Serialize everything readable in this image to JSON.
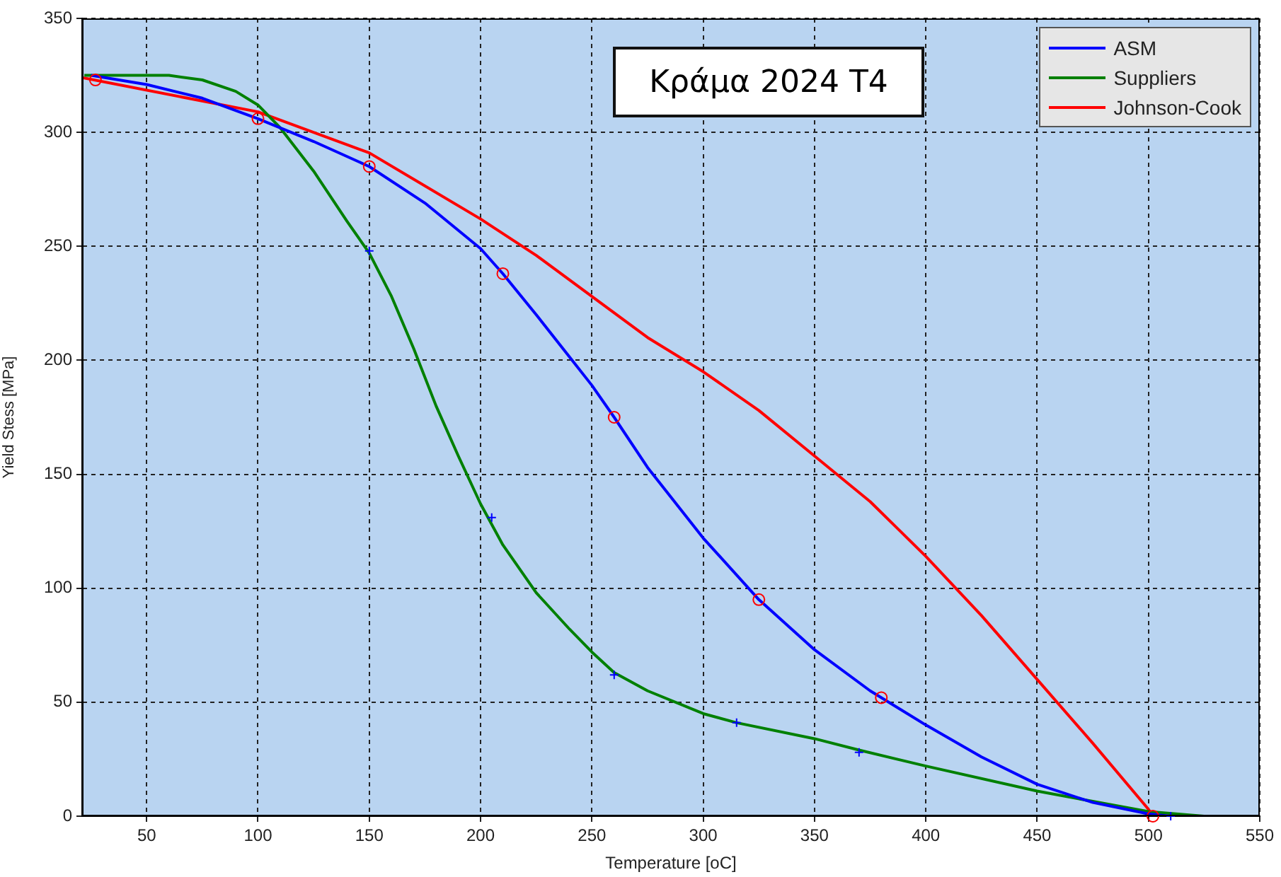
{
  "chart_data": {
    "type": "line",
    "xlabel": "Temperature [oC]",
    "ylabel": "Yield Stess [MPa]",
    "annotations": [
      "Κράμα 2024 T4"
    ],
    "xlim": [
      21,
      550
    ],
    "ylim": [
      0,
      350
    ],
    "xticks": [
      50,
      100,
      150,
      200,
      250,
      300,
      350,
      400,
      450,
      500,
      550
    ],
    "yticks": [
      0,
      50,
      100,
      150,
      200,
      250,
      300,
      350
    ],
    "grid": true,
    "legend": "top right",
    "marker": "none",
    "line_style": "solid",
    "series": [
      {
        "name": "ASM",
        "color": "#0000ff",
        "x": [
          25,
          50,
          75,
          100,
          125,
          150,
          175,
          200,
          210,
          225,
          250,
          260,
          275,
          300,
          325,
          350,
          375,
          400,
          425,
          450,
          475,
          500,
          510
        ],
        "values": [
          325,
          321,
          315,
          306,
          296,
          285,
          269,
          249,
          238,
          220,
          189,
          175,
          153,
          122,
          95,
          73,
          55,
          40,
          26,
          14,
          6,
          1,
          0
        ]
      },
      {
        "name": "Suppliers",
        "color": "#008000",
        "x": [
          22,
          40,
          60,
          75,
          90,
          100,
          110,
          125,
          140,
          150,
          160,
          170,
          180,
          190,
          200,
          210,
          225,
          240,
          250,
          260,
          275,
          300,
          315,
          350,
          370,
          400,
          450,
          500,
          525
        ],
        "values": [
          325,
          325,
          325,
          323,
          318,
          312,
          302,
          283,
          261,
          247,
          228,
          205,
          180,
          158,
          137,
          119,
          98,
          82,
          72,
          63,
          55,
          45,
          41,
          34,
          29,
          22,
          11,
          2,
          0
        ]
      },
      {
        "name": "Johnson-Cook",
        "color": "#ff0000",
        "x": [
          21,
          100,
          150,
          200,
          225,
          250,
          275,
          300,
          325,
          350,
          375,
          400,
          425,
          450,
          475,
          500,
          502
        ],
        "values": [
          324,
          309,
          291,
          262,
          246,
          228,
          210,
          195,
          178,
          158,
          138,
          114,
          88,
          60,
          32,
          3,
          0
        ]
      },
      {
        "type": "scatter",
        "marker": "circle",
        "color": "#ff0000",
        "x": [
          27,
          100,
          150,
          210,
          260,
          325,
          380,
          502
        ],
        "values": [
          323,
          306,
          285,
          238,
          175,
          95,
          52,
          0
        ]
      },
      {
        "type": "scatter",
        "marker": "cross",
        "color": "#0000ff",
        "x": [
          150,
          205,
          260,
          315,
          370,
          510
        ],
        "values": [
          248,
          131,
          62,
          41,
          28,
          0
        ]
      }
    ]
  }
}
